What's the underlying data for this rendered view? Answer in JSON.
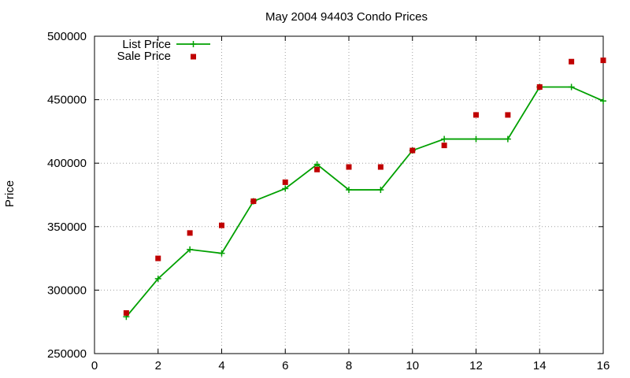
{
  "chart_data": {
    "type": "scatter",
    "title": "May 2004 94403 Condo Prices",
    "xlabel": "",
    "ylabel": "Price",
    "xlim": [
      0,
      16
    ],
    "ylim": [
      250000,
      500000
    ],
    "x_ticks": [
      "0",
      "2",
      "4",
      "6",
      "8",
      "10",
      "12",
      "14",
      "16"
    ],
    "y_ticks": [
      "250000",
      "300000",
      "350000",
      "400000",
      "450000",
      "500000"
    ],
    "grid": true,
    "legend_position": "top-left",
    "series": [
      {
        "name": "List Price",
        "style": "line-with-plus-markers",
        "color": "#00a000",
        "x": [
          1,
          2,
          3,
          4,
          5,
          6,
          7,
          8,
          9,
          10,
          11,
          12,
          13,
          14,
          15,
          16
        ],
        "values": [
          279000,
          309000,
          332000,
          329000,
          370000,
          380000,
          399000,
          379000,
          379000,
          410000,
          419000,
          419000,
          419000,
          460000,
          460000,
          449000
        ]
      },
      {
        "name": "Sale Price",
        "style": "square-markers",
        "color": "#c00000",
        "x": [
          1,
          2,
          3,
          4,
          5,
          6,
          7,
          8,
          9,
          10,
          11,
          12,
          13,
          14,
          15,
          16
        ],
        "values": [
          282000,
          325000,
          345000,
          351000,
          370000,
          385000,
          395000,
          397000,
          397000,
          410000,
          414000,
          438000,
          438000,
          460000,
          480000,
          481000
        ]
      }
    ]
  }
}
